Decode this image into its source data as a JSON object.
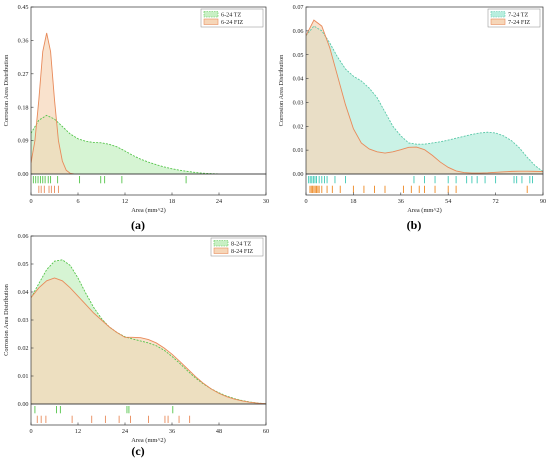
{
  "figure": {
    "panels": [
      "(a)",
      "(b)",
      "(c)"
    ]
  },
  "colors": {
    "tz_fill": "#c8f0c4",
    "tz_line": "#54c44a",
    "fiz_fill": "#f6d6b8",
    "fiz_line": "#e88a5a",
    "tz_fill_b": "#b8eede",
    "tz_line_b": "#5ac8a8",
    "tz_rug_b": "#3cc8b4",
    "fiz_rug_b": "#ee8822",
    "overlap_fill": "#dfdcbc"
  },
  "chart_data": [
    {
      "type": "area",
      "panel_label": "(a)",
      "xlabel": "Area (mm^2)",
      "ylabel": "Corrosion Area Distribution",
      "xlim": [
        0,
        30
      ],
      "ylim": [
        0,
        0.45
      ],
      "xticks": [
        0,
        6,
        12,
        18,
        24,
        30
      ],
      "yticks": [
        0.0,
        0.09,
        0.18,
        0.27,
        0.36,
        0.45
      ],
      "ytick_labels": [
        "0.00",
        "0.09",
        "0.18",
        "0.27",
        "0.36",
        "0.45"
      ],
      "legend_position": "top-right",
      "series": [
        {
          "name": "6-24 TZ",
          "x": [
            0,
            1,
            2,
            3,
            4,
            5,
            6,
            7,
            8,
            9,
            10,
            11,
            12,
            13,
            14,
            15,
            16,
            17,
            18,
            19,
            20,
            21,
            22,
            23,
            24
          ],
          "y": [
            0.11,
            0.145,
            0.158,
            0.148,
            0.128,
            0.108,
            0.095,
            0.088,
            0.085,
            0.084,
            0.08,
            0.073,
            0.062,
            0.05,
            0.04,
            0.032,
            0.025,
            0.019,
            0.014,
            0.01,
            0.007,
            0.004,
            0.002,
            0.001,
            0.0
          ],
          "rug": [
            0.3,
            0.6,
            0.9,
            1.2,
            1.5,
            1.8,
            2.2,
            2.5,
            3.4,
            6.2,
            8.9,
            9.4,
            11.6,
            19.8
          ]
        },
        {
          "name": "6-24 FIZ",
          "x": [
            0,
            0.5,
            1,
            1.5,
            2,
            2.5,
            3,
            3.5,
            4,
            4.5,
            5,
            5.5
          ],
          "y": [
            0.03,
            0.09,
            0.2,
            0.33,
            0.38,
            0.33,
            0.2,
            0.09,
            0.035,
            0.01,
            0.002,
            0.0
          ],
          "rug": [
            1.0,
            1.3,
            1.7,
            2.3,
            2.6,
            3.0,
            3.5
          ]
        }
      ]
    },
    {
      "type": "area",
      "panel_label": "(b)",
      "xlabel": "Area (mm^2)",
      "ylabel": "Corrosion Area Distribution",
      "xlim": [
        0,
        90
      ],
      "ylim": [
        0,
        0.07
      ],
      "xticks": [
        0,
        18,
        36,
        54,
        72,
        90
      ],
      "yticks": [
        0.0,
        0.01,
        0.02,
        0.03,
        0.04,
        0.05,
        0.06,
        0.07
      ],
      "ytick_labels": [
        "0.00",
        "0.01",
        "0.02",
        "0.03",
        "0.04",
        "0.05",
        "0.06",
        "0.07"
      ],
      "legend_position": "top-right",
      "series": [
        {
          "name": "7-24 TZ",
          "x": [
            0,
            3,
            6,
            9,
            12,
            15,
            18,
            21,
            24,
            27,
            30,
            33,
            36,
            39,
            42,
            45,
            48,
            51,
            54,
            57,
            60,
            63,
            66,
            69,
            72,
            75,
            78,
            81,
            84,
            87,
            90
          ],
          "y": [
            0.058,
            0.062,
            0.06,
            0.055,
            0.049,
            0.044,
            0.041,
            0.039,
            0.036,
            0.032,
            0.026,
            0.02,
            0.016,
            0.013,
            0.0125,
            0.0125,
            0.013,
            0.0135,
            0.0142,
            0.015,
            0.0158,
            0.0166,
            0.0172,
            0.0175,
            0.0172,
            0.016,
            0.014,
            0.011,
            0.007,
            0.0035,
            0.001
          ],
          "rug": [
            1,
            1.6,
            2.2,
            2.8,
            3.4,
            4,
            5,
            6,
            7,
            8,
            11,
            15,
            41,
            45,
            49,
            54,
            57,
            61,
            63,
            65,
            68,
            72,
            79,
            80,
            82,
            85,
            86
          ]
        },
        {
          "name": "7-24 FIZ",
          "x": [
            0,
            3,
            6,
            9,
            12,
            15,
            18,
            21,
            24,
            27,
            30,
            33,
            36,
            39,
            42,
            45,
            48,
            51,
            54,
            57,
            60,
            63,
            66,
            69,
            72,
            75,
            78,
            81,
            84,
            87,
            90
          ],
          "y": [
            0.058,
            0.0645,
            0.062,
            0.053,
            0.041,
            0.029,
            0.019,
            0.013,
            0.0105,
            0.0093,
            0.0088,
            0.0093,
            0.0102,
            0.0112,
            0.0113,
            0.0102,
            0.0078,
            0.005,
            0.0028,
            0.0013,
            0.0006,
            0.0004,
            0.0004,
            0.0005,
            0.0007,
            0.0009,
            0.0011,
            0.0012,
            0.0012,
            0.0011,
            0.001
          ],
          "rug": [
            1.5,
            2,
            2.5,
            3,
            3.5,
            4,
            4.5,
            5,
            6,
            8,
            10,
            13,
            18,
            22,
            26,
            30,
            37,
            40,
            43,
            45,
            49,
            54,
            57,
            84
          ]
        }
      ]
    },
    {
      "type": "area",
      "panel_label": "(c)",
      "xlabel": "Area (mm^2)",
      "ylabel": "Corrosion Area Distribution",
      "xlim": [
        0,
        60
      ],
      "ylim": [
        0,
        0.06
      ],
      "xticks": [
        0,
        12,
        24,
        36,
        48,
        60
      ],
      "yticks": [
        0.0,
        0.01,
        0.02,
        0.03,
        0.04,
        0.05,
        0.06
      ],
      "ytick_labels": [
        "0.00",
        "0.01",
        "0.02",
        "0.03",
        "0.04",
        "0.05",
        "0.06"
      ],
      "legend_position": "top-right",
      "series": [
        {
          "name": "8-24 TZ",
          "x": [
            0,
            2,
            4,
            6,
            8,
            10,
            12,
            14,
            16,
            18,
            20,
            22,
            24,
            26,
            28,
            30,
            32,
            34,
            36,
            38,
            40,
            42,
            44,
            46,
            48,
            50,
            52,
            54,
            56,
            58,
            60
          ],
          "y": [
            0.038,
            0.043,
            0.048,
            0.051,
            0.0515,
            0.0495,
            0.045,
            0.0395,
            0.0345,
            0.0305,
            0.0275,
            0.0255,
            0.024,
            0.0232,
            0.0225,
            0.0218,
            0.0208,
            0.0192,
            0.017,
            0.0145,
            0.0118,
            0.0093,
            0.0072,
            0.0054,
            0.004,
            0.0028,
            0.0019,
            0.0012,
            0.0007,
            0.0003,
            0.0001
          ],
          "rug": [
            1,
            6.5,
            7.5,
            24.5,
            25,
            36.2
          ]
        },
        {
          "name": "8-24 FIZ",
          "x": [
            0,
            2,
            4,
            6,
            8,
            10,
            12,
            14,
            16,
            18,
            20,
            22,
            24,
            26,
            28,
            30,
            32,
            34,
            36,
            38,
            40,
            42,
            44,
            46,
            48,
            50,
            52,
            54,
            56,
            58,
            60
          ],
          "y": [
            0.038,
            0.0415,
            0.044,
            0.045,
            0.044,
            0.0415,
            0.0385,
            0.0355,
            0.0325,
            0.03,
            0.0275,
            0.0255,
            0.0238,
            0.0238,
            0.0237,
            0.023,
            0.0218,
            0.02,
            0.0178,
            0.0152,
            0.0125,
            0.0098,
            0.0074,
            0.0054,
            0.0038,
            0.0026,
            0.0017,
            0.0011,
            0.0006,
            0.0003,
            0.0001
          ],
          "rug": [
            1.6,
            2.6,
            3.8,
            10.5,
            15.5,
            19,
            22.5,
            25.4,
            30,
            34.2,
            35,
            37.8,
            40.5
          ]
        }
      ]
    }
  ]
}
